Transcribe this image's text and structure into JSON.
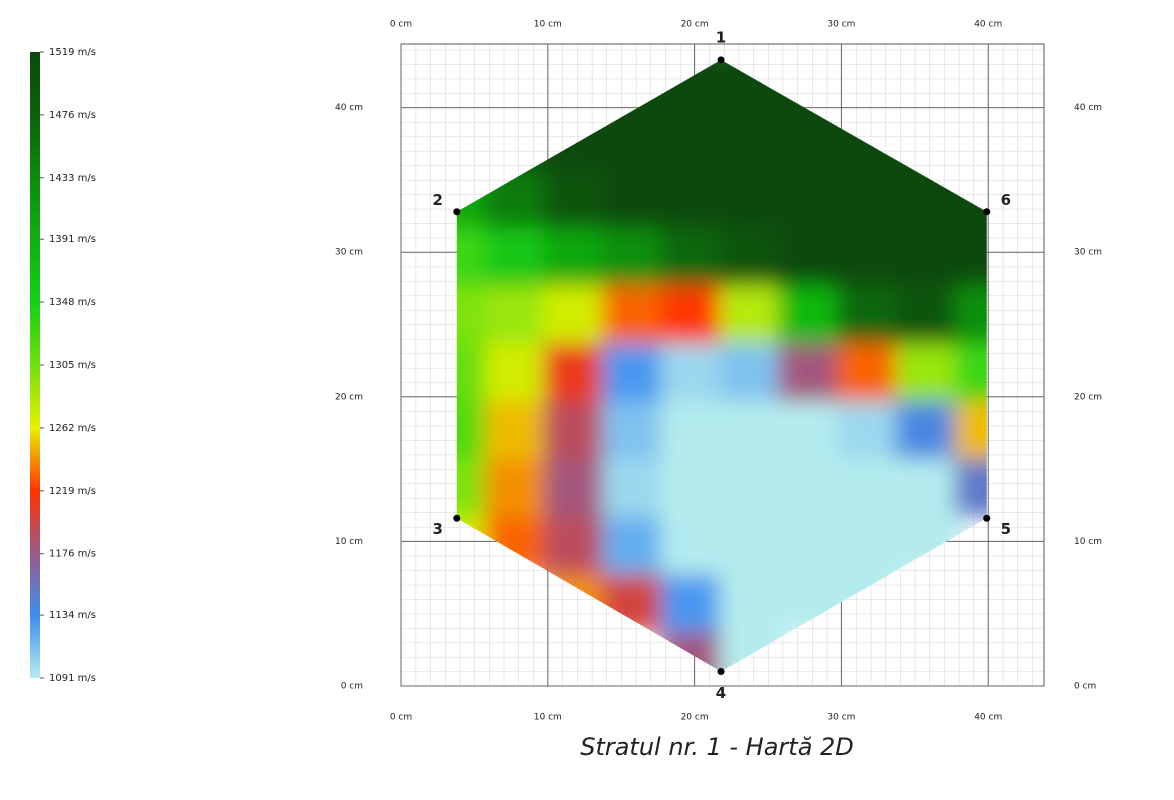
{
  "chart_data": {
    "type": "heatmap",
    "title": "Stratul nr. 1 - Hartă 2D",
    "xlim": [
      0,
      43.8
    ],
    "ylim": [
      0,
      44.4
    ],
    "xticks": [
      {
        "value": 0,
        "label": "0 cm"
      },
      {
        "value": 10,
        "label": "10 cm"
      },
      {
        "value": 20,
        "label": "20 cm"
      },
      {
        "value": 30,
        "label": "30 cm"
      },
      {
        "value": 40,
        "label": "40 cm"
      }
    ],
    "yticks": [
      {
        "value": 0,
        "label": "0 cm"
      },
      {
        "value": 10,
        "label": "10 cm"
      },
      {
        "value": 20,
        "label": "20 cm"
      },
      {
        "value": 30,
        "label": "30 cm"
      },
      {
        "value": 40,
        "label": "40 cm"
      }
    ],
    "grid": true,
    "colorbar": {
      "lim": [
        1091,
        1519
      ],
      "ticks": [
        {
          "value": 1519,
          "label": "1519 m/s"
        },
        {
          "value": 1476,
          "label": "1476 m/s"
        },
        {
          "value": 1433,
          "label": "1433 m/s"
        },
        {
          "value": 1391,
          "label": "1391 m/s"
        },
        {
          "value": 1348,
          "label": "1348 m/s"
        },
        {
          "value": 1305,
          "label": "1305 m/s"
        },
        {
          "value": 1262,
          "label": "1262 m/s"
        },
        {
          "value": 1219,
          "label": "1219 m/s"
        },
        {
          "value": 1176,
          "label": "1176 m/s"
        },
        {
          "value": 1134,
          "label": "1134 m/s"
        },
        {
          "value": 1091,
          "label": "1091 m/s"
        }
      ],
      "colors": [
        "#0a4a0a",
        "#0a620a",
        "#0a8c0a",
        "#10b010",
        "#14d014",
        "#70e010",
        "#e8f000",
        "#ff3300",
        "#9a5a8a",
        "#3d8ef0",
        "#b4ecee"
      ]
    },
    "points": [
      {
        "label": "1",
        "x": 21.8,
        "y": 43.3
      },
      {
        "label": "2",
        "x": 3.8,
        "y": 32.8
      },
      {
        "label": "3",
        "x": 3.8,
        "y": 11.6
      },
      {
        "label": "4",
        "x": 21.8,
        "y": 1.0
      },
      {
        "label": "5",
        "x": 39.9,
        "y": 11.6
      },
      {
        "label": "6",
        "x": 39.9,
        "y": 32.8
      }
    ],
    "field": {
      "x": [
        4,
        8,
        12,
        16,
        20,
        24,
        28,
        32,
        36,
        40
      ],
      "y": [
        2,
        6,
        10,
        14,
        18,
        22,
        26,
        30,
        34,
        38,
        42
      ],
      "values": [
        [
          null,
          null,
          null,
          null,
          1180,
          1091,
          null,
          null,
          null,
          null
        ],
        [
          null,
          null,
          1240,
          1200,
          1130,
          1091,
          1091,
          1091,
          null,
          null
        ],
        [
          1270,
          1230,
          1190,
          1120,
          1091,
          1091,
          1091,
          1091,
          1091,
          null
        ],
        [
          1300,
          1240,
          1180,
          1100,
          1091,
          1091,
          1091,
          1091,
          1091,
          1150
        ],
        [
          1320,
          1250,
          1190,
          1110,
          1091,
          1091,
          1091,
          1100,
          1140,
          1250
        ],
        [
          1310,
          1270,
          1210,
          1130,
          1100,
          1110,
          1180,
          1230,
          1290,
          1330
        ],
        [
          1300,
          1290,
          1270,
          1230,
          1220,
          1280,
          1380,
          1470,
          1500,
          1430
        ],
        [
          1330,
          1360,
          1400,
          1430,
          1470,
          1500,
          1519,
          1519,
          1519,
          1519
        ],
        [
          1400,
          1450,
          1500,
          1519,
          1519,
          1519,
          1519,
          1519,
          1519,
          1519
        ],
        [
          null,
          1519,
          1519,
          1519,
          1519,
          1519,
          1519,
          1519,
          1519,
          null
        ],
        [
          null,
          null,
          null,
          1519,
          1519,
          1519,
          1519,
          null,
          null,
          null
        ]
      ]
    }
  }
}
